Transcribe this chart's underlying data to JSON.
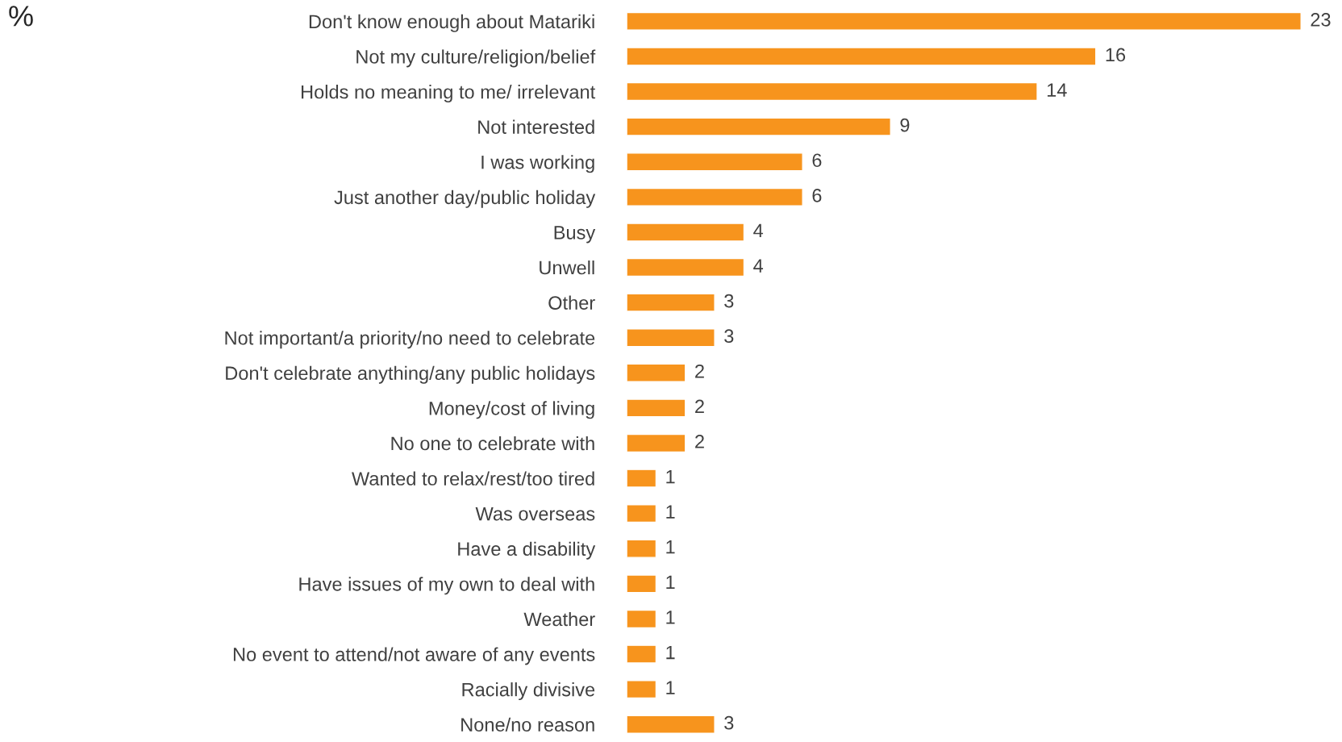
{
  "chart_data": {
    "type": "bar",
    "orientation": "horizontal",
    "annotations": [
      "%"
    ],
    "categories": [
      "Don't know enough about Matariki",
      "Not my culture/religion/belief",
      "Holds no meaning to me/ irrelevant",
      "Not interested",
      "I was working",
      "Just another day/public holiday",
      "Busy",
      "Unwell",
      "Other",
      "Not important/a priority/no need to celebrate",
      "Don't celebrate anything/any public holidays",
      "Money/cost of living",
      "No one to celebrate with",
      "Wanted to relax/rest/too tired",
      "Was overseas",
      "Have a disability",
      "Have issues of my own to deal with",
      "Weather",
      "No event to attend/not aware of any events",
      "Racially divisive",
      "None/no reason"
    ],
    "values": [
      23,
      16,
      14,
      9,
      6,
      6,
      4,
      4,
      3,
      3,
      2,
      2,
      2,
      1,
      1,
      1,
      1,
      1,
      1,
      1,
      3
    ],
    "color": "#f7941d",
    "data_labels": true,
    "tick_labels": "y",
    "grid": false
  }
}
